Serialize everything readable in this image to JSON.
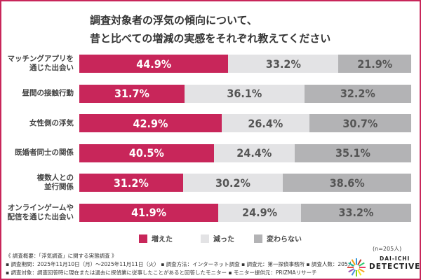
{
  "chart_data": {
    "type": "bar",
    "orientation": "horizontal",
    "stacked": true,
    "title": [
      "調査対象者の浮気の傾向について、",
      "昔と比べての増減の実感をそれぞれ教えてください"
    ],
    "categories": [
      [
        "マッチングアプリを",
        "通じた出会い"
      ],
      [
        "昼間の接触行動"
      ],
      [
        "女性側の浮気"
      ],
      [
        "既婚者同士の関係"
      ],
      [
        "複数人との",
        "並行関係"
      ],
      [
        "オンラインゲームや",
        "配信を通じた出会い"
      ]
    ],
    "series": [
      {
        "name": "増えた",
        "color": "#c8265a",
        "text_color": "#ffffff",
        "values": [
          44.9,
          31.7,
          42.9,
          40.5,
          31.2,
          41.9
        ]
      },
      {
        "name": "減った",
        "color": "#e3e3e5",
        "text_color": "#555555",
        "values": [
          33.2,
          36.1,
          26.4,
          24.4,
          30.2,
          24.9
        ]
      },
      {
        "name": "変わらない",
        "color": "#b3b3b5",
        "text_color": "#555555",
        "values": [
          21.9,
          32.2,
          30.7,
          35.1,
          38.6,
          33.2
        ]
      }
    ],
    "value_suffix": "%",
    "xlim": [
      0,
      100
    ],
    "legend_position": "bottom",
    "grid": false
  },
  "sample": "(n=205人)",
  "notes": [
    "《 調査概要：「浮気調査」に関する実態調査 》",
    "▪ 調査期間：2025年11月10日（月）～2025年11月11日（火） ▪ 調査方法：インターネット調査 ▪ 調査元：第一探偵事務所 ▪ 調査人数：205人",
    "▪ 調査対象：調査回答時に現在または過去に探偵業に従事したことがあると回答したモニター ▪ モニター提供元：PRIZMAリサーチ"
  ],
  "logo": {
    "line1": "DAI-ICHI",
    "line2": "DETECTIVE"
  }
}
